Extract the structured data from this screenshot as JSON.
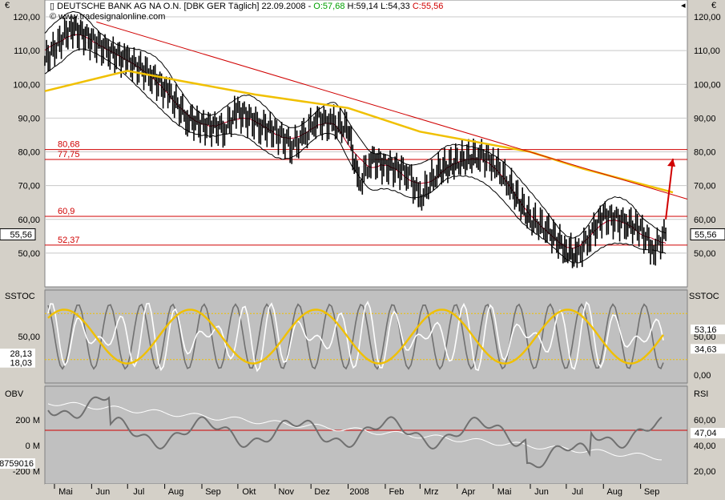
{
  "header": {
    "icon": "candlestick-icon",
    "symbol": "DEUTSCHE BANK AG NA O.N. [DBK GER  Täglich]",
    "date": "22.09.2008",
    "open": "O:57,68",
    "high": "H:59,14",
    "low": "L:54,33",
    "close": "C:55,56",
    "copyright": "© www.tradesignalonline.com"
  },
  "colors": {
    "background": "#ffffff",
    "frame": "#d4d0c8",
    "price": "#000000",
    "sma200": "#f0c000",
    "resistance_lines": "#d00000",
    "bollinger": "#000000",
    "short_ma": "#ffffff",
    "mid_ma": "#c00020",
    "stoch_white": "#ffffff",
    "stoch_gray": "#707070",
    "stoch_signal": "#f0c000",
    "obv": "#707070",
    "rsi": "#ffffff"
  },
  "panels": {
    "price": {
      "currency": "€",
      "ticks": [
        "120,00",
        "110,00",
        "100,00",
        "90,00",
        "80,00",
        "70,00",
        "60,00",
        "50,00"
      ],
      "last_value": "55,56",
      "levels": [
        {
          "label": "80,68",
          "value": 80.68
        },
        {
          "label": "77,75",
          "value": 77.75
        },
        {
          "label": "60,9",
          "value": 60.9
        },
        {
          "label": "52,37",
          "value": 52.37
        }
      ],
      "trendline": {
        "from": {
          "x": "2008-05-01",
          "y": 118
        },
        "to": {
          "x": "2008-09-28",
          "y": 66
        }
      },
      "arrow": {
        "from": {
          "x": "2008-09-22",
          "y": 60
        },
        "to": {
          "x": "2008-09-28",
          "y": 78
        }
      }
    },
    "stoch": {
      "label": "SSTOC",
      "left_ticks": [
        "50,00"
      ],
      "left_values": [
        "28,13",
        "18,03"
      ],
      "right_ticks": [
        "50,00",
        "0,00"
      ],
      "right_values": [
        "53,16",
        "34,63"
      ],
      "upper_band": 80,
      "lower_band": 20
    },
    "obv": {
      "left_label": "OBV",
      "right_label": "RSI",
      "left_ticks": [
        "200 M",
        "0 M",
        "-200 M"
      ],
      "left_value": "8759016",
      "right_ticks": [
        "60,00",
        "40,00",
        "20,00"
      ],
      "right_value": "47,04"
    }
  },
  "x_axis": {
    "labels": [
      "Mai",
      "Jun",
      "Jul",
      "Aug",
      "Sep",
      "Okt",
      "Nov",
      "Dez",
      "2008",
      "Feb",
      "Mrz",
      "Apr",
      "Mai",
      "Jun",
      "Jul",
      "Aug",
      "Sep"
    ]
  },
  "chart_data": {
    "type": "line",
    "price_series": {
      "name": "DEUTSCHE BANK AG NA O.N.",
      "dates": [
        "2007-04-23",
        "2007-05-15",
        "2007-06-01",
        "2007-06-15",
        "2007-07-01",
        "2007-07-20",
        "2007-08-05",
        "2007-08-20",
        "2007-09-01",
        "2007-09-20",
        "2007-10-01",
        "2007-10-20",
        "2007-11-01",
        "2007-11-15",
        "2007-11-25",
        "2007-12-05",
        "2007-12-20",
        "2008-01-01",
        "2008-01-10",
        "2008-01-20",
        "2008-02-01",
        "2008-02-20",
        "2008-03-01",
        "2008-03-15",
        "2008-04-01",
        "2008-04-20",
        "2008-05-01",
        "2008-05-15",
        "2008-06-01",
        "2008-06-15",
        "2008-07-01",
        "2008-07-10",
        "2008-07-20",
        "2008-08-01",
        "2008-08-20",
        "2008-09-01",
        "2008-09-12",
        "2008-09-22"
      ],
      "close": [
        107,
        117,
        113,
        110,
        107,
        103,
        97,
        90,
        88,
        87,
        92,
        88,
        86,
        82,
        84,
        90,
        88,
        87,
        70,
        78,
        76,
        74,
        66,
        74,
        77,
        79,
        77,
        70,
        60,
        57,
        51,
        49,
        55,
        61,
        59,
        57,
        51,
        55.56
      ]
    },
    "sma200": {
      "dates": [
        "2007-04-23",
        "2007-07-01",
        "2007-08-15",
        "2007-10-15",
        "2008-01-01",
        "2008-03-01",
        "2008-06-01",
        "2008-07-15",
        "2008-09-28"
      ],
      "values": [
        98,
        104,
        101,
        97,
        93,
        86,
        80,
        75,
        68
      ]
    },
    "y_range": [
      40,
      125
    ],
    "x_range": [
      "2007-04-23",
      "2008-10-10"
    ]
  }
}
